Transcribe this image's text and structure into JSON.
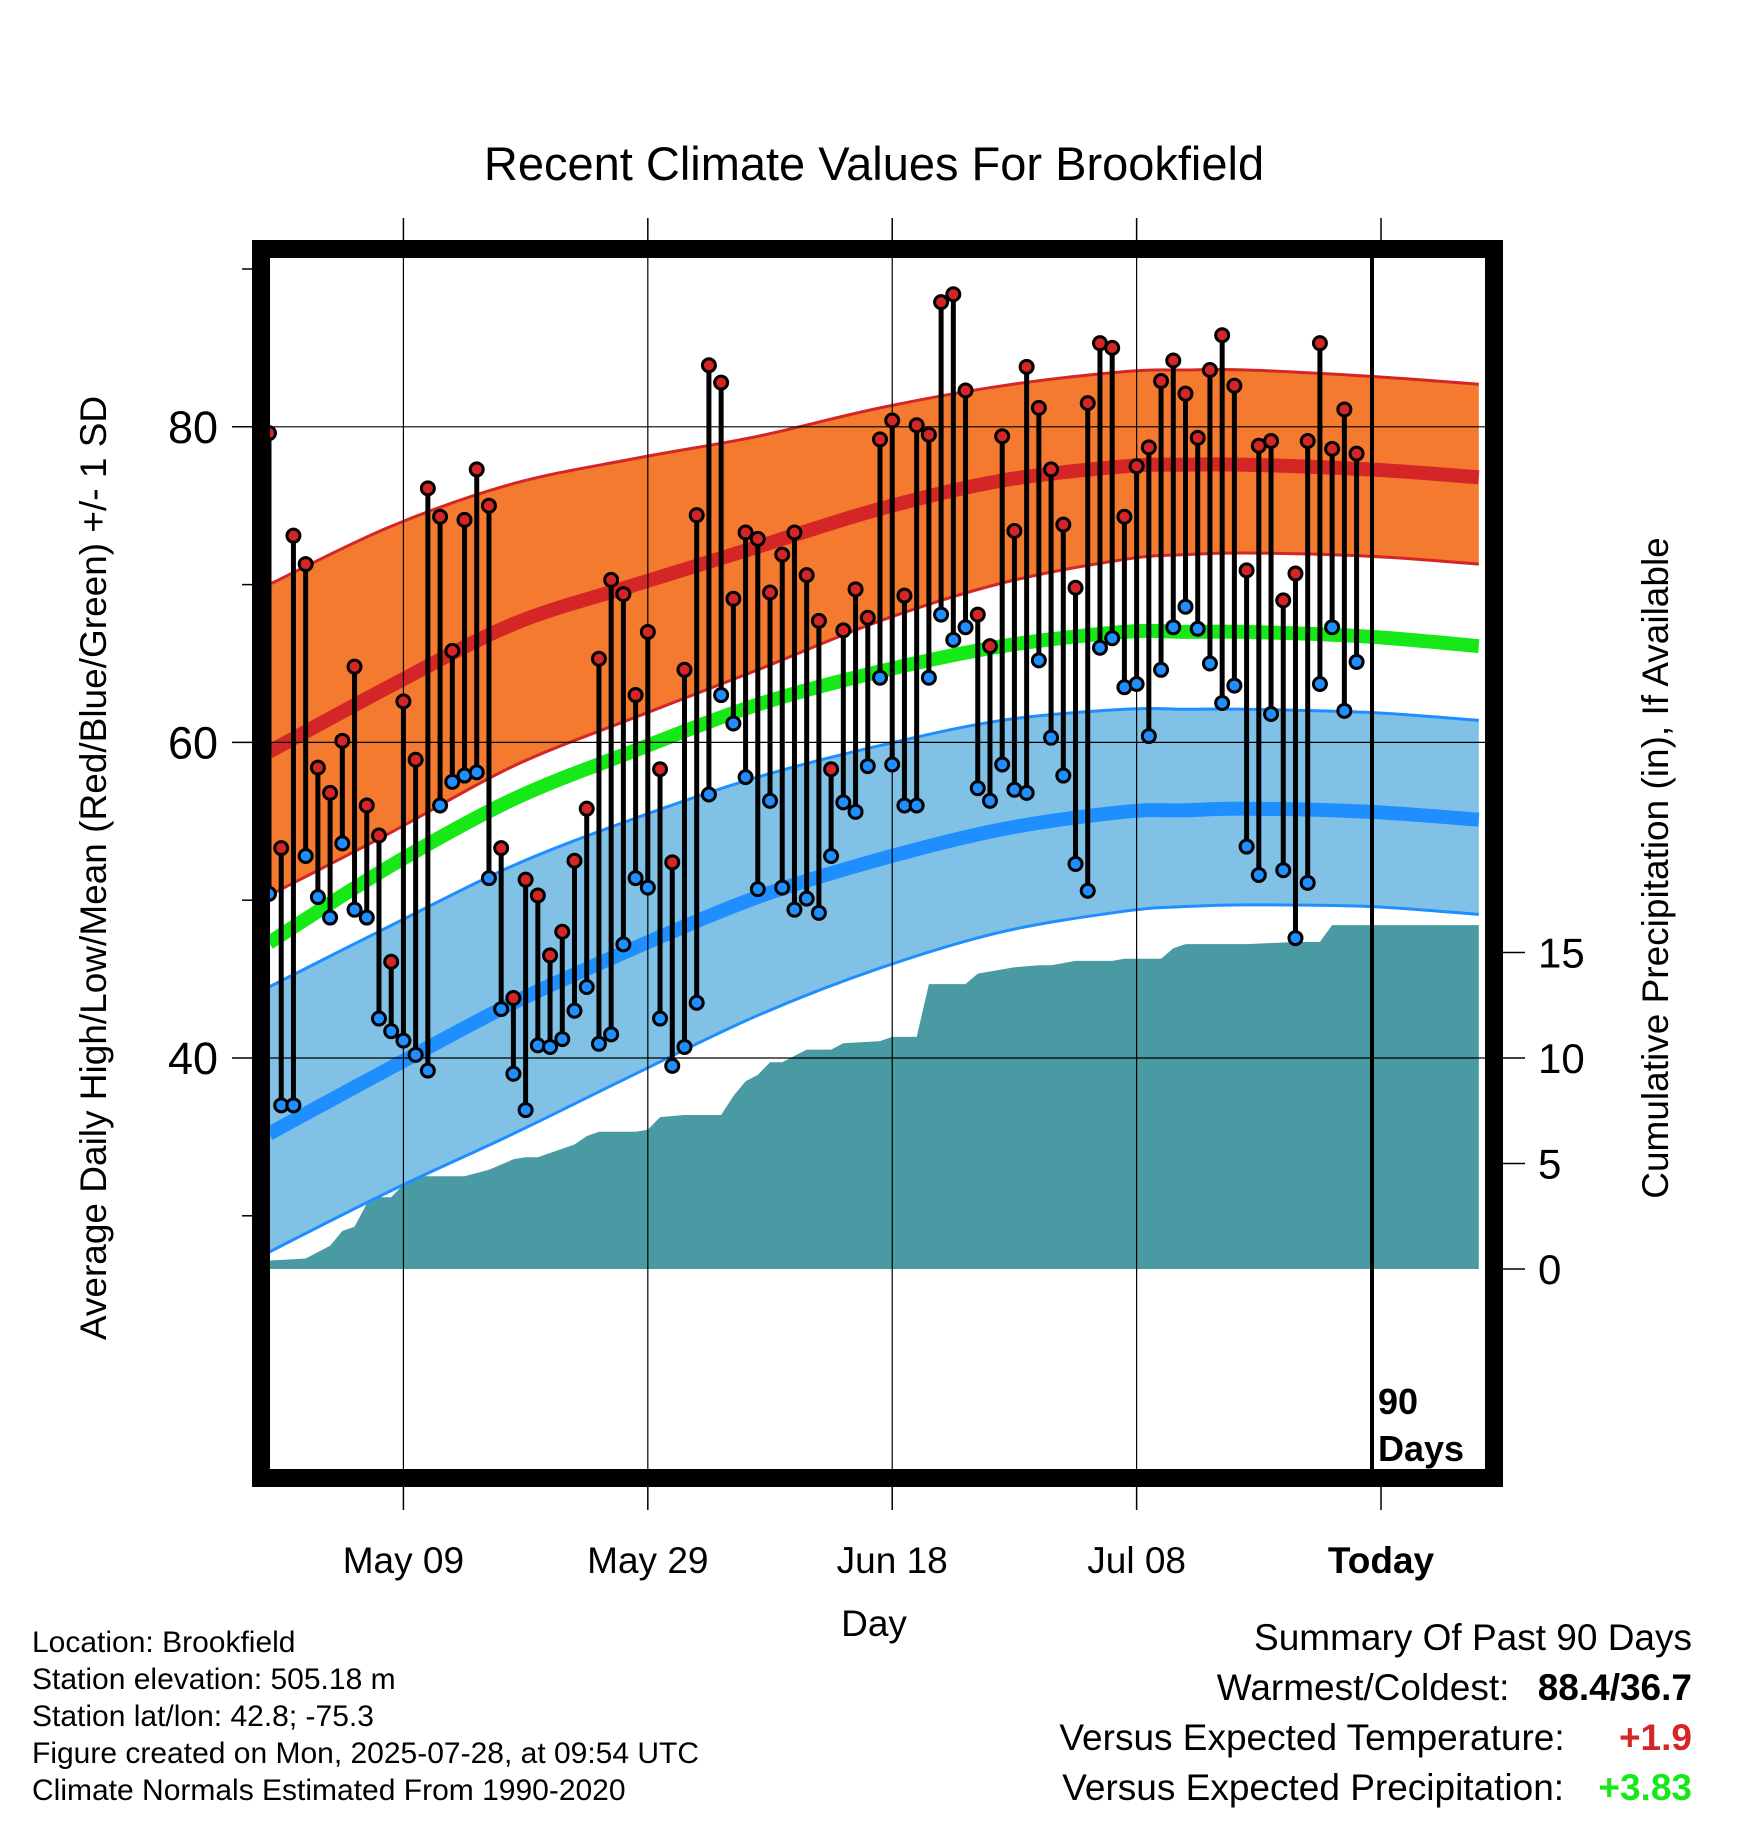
{
  "title": "Recent Climate Values For Brookfield",
  "y_label": "Average Daily High/Low/Mean (Red/Blue/Green) +/- 1 SD",
  "y2_label": "Cumulative Precipitation (in), If Available",
  "x_label": "Day",
  "x_ticks": [
    "May 09",
    "May 29",
    "Jun 18",
    "Jul 08",
    "Today"
  ],
  "y_ticks": [
    "40",
    "60",
    "80"
  ],
  "y2_ticks": [
    "0",
    "5",
    "10",
    "15"
  ],
  "today_marker": "90 Days",
  "info": {
    "location": "Location: Brookfield",
    "elevation": "Station elevation: 505.18 m",
    "latlon": "Station lat/lon: 42.8; -75.3",
    "created": "Figure created on Mon, 2025-07-28, at 09:54 UTC",
    "normals": "Climate Normals Estimated From 1990-2020"
  },
  "summary": {
    "heading": "Summary Of Past 90 Days",
    "warm_cold_label": "Warmest/Coldest:",
    "warm_cold_value": "88.4/36.7",
    "temp_label": "Versus Expected Temperature:",
    "temp_value": "+1.9",
    "precip_label": "Versus Expected Precipitation:",
    "precip_value": "+3.83"
  },
  "colors": {
    "high_band": "#f47a30",
    "high_line": "#d42626",
    "mean_line": "#17e817",
    "low_band": "#82c1e6",
    "low_line": "#1f8fff",
    "precip": "#4a9aa4",
    "high_point": "#d42626",
    "low_point": "#1f8fff",
    "temp_positive": "#d42626",
    "precip_positive": "#17e817"
  },
  "chart_data": {
    "type": "line",
    "x_axis": "day offset from Apr 28 (Today = day 90)",
    "xlim": [
      0,
      99
    ],
    "ylim": [
      25.5,
      95
    ],
    "y2lim": [
      0,
      27.5
    ],
    "normals": {
      "x": [
        0,
        10,
        20,
        30,
        40,
        50,
        60,
        70,
        75,
        80,
        90,
        99
      ],
      "high_mean": [
        59.4,
        63.6,
        67.5,
        70.0,
        72.4,
        74.8,
        76.6,
        77.5,
        77.6,
        77.6,
        77.3,
        76.8
      ],
      "high_upper": [
        70.0,
        73.7,
        76.4,
        78.0,
        79.4,
        81.2,
        82.6,
        83.5,
        83.6,
        83.6,
        83.2,
        82.7
      ],
      "high_lower": [
        50.3,
        54.3,
        58.5,
        61.6,
        64.6,
        67.7,
        70.1,
        71.6,
        71.9,
        72.0,
        71.8,
        71.3
      ],
      "mean": [
        47.3,
        52.2,
        56.4,
        59.5,
        62.4,
        64.5,
        66.1,
        67.0,
        67.0,
        67.0,
        66.7,
        66.1
      ],
      "low_mean": [
        35.2,
        39.4,
        43.5,
        47.0,
        50.2,
        52.6,
        54.5,
        55.6,
        55.7,
        55.8,
        55.6,
        55.1
      ],
      "low_upper": [
        44.5,
        48.4,
        52.2,
        55.2,
        57.8,
        59.8,
        61.4,
        62.1,
        62.1,
        62.1,
        61.9,
        61.4
      ],
      "low_lower": [
        27.7,
        31.6,
        35.2,
        39.0,
        42.7,
        45.7,
        48.0,
        49.3,
        49.6,
        49.7,
        49.6,
        49.1
      ]
    },
    "daily": {
      "x": [
        0,
        1,
        2,
        3,
        4,
        5,
        6,
        7,
        8,
        9,
        10,
        11,
        12,
        13,
        14,
        15,
        16,
        17,
        18,
        19,
        20,
        21,
        22,
        23,
        24,
        25,
        26,
        27,
        28,
        29,
        30,
        31,
        32,
        33,
        34,
        35,
        36,
        37,
        38,
        39,
        40,
        41,
        42,
        43,
        44,
        45,
        46,
        47,
        48,
        49,
        50,
        51,
        52,
        53,
        54,
        55,
        56,
        57,
        58,
        59,
        60,
        61,
        62,
        63,
        64,
        65,
        66,
        67,
        68,
        69,
        70,
        71,
        72,
        73,
        74,
        75,
        76,
        77,
        78,
        79,
        80,
        81,
        82,
        83,
        84,
        85,
        86,
        87,
        88,
        89
      ],
      "high": [
        79.6,
        53.3,
        73.1,
        71.3,
        58.4,
        56.8,
        60.1,
        64.8,
        56.0,
        54.1,
        46.1,
        62.6,
        58.9,
        76.1,
        74.3,
        65.8,
        74.1,
        77.3,
        75.0,
        53.3,
        43.8,
        51.3,
        50.3,
        46.5,
        48.0,
        52.5,
        55.8,
        65.3,
        70.3,
        69.4,
        63.0,
        67.0,
        58.3,
        52.4,
        64.6,
        74.4,
        83.9,
        82.8,
        69.1,
        73.3,
        72.9,
        69.5,
        71.9,
        73.3,
        70.6,
        67.7,
        58.3,
        67.1,
        69.7,
        67.9,
        79.2,
        80.4,
        69.3,
        80.1,
        79.5,
        87.9,
        88.4,
        82.3,
        68.1,
        66.1,
        79.4,
        73.4,
        83.8,
        81.2,
        77.3,
        73.8,
        69.8,
        81.5,
        85.3,
        85.0,
        74.3,
        77.5,
        78.7,
        82.9,
        84.2,
        82.1,
        79.3,
        83.6,
        85.8,
        82.6,
        70.9,
        78.8,
        79.1,
        69.0,
        70.7,
        79.1,
        85.3,
        78.6,
        81.1,
        78.3
      ],
      "low": [
        50.4,
        37.0,
        37.0,
        52.8,
        50.2,
        48.9,
        53.6,
        49.4,
        48.9,
        42.5,
        41.7,
        41.1,
        40.2,
        39.2,
        56.0,
        57.5,
        57.9,
        58.1,
        51.4,
        43.1,
        39.0,
        36.7,
        40.8,
        40.7,
        41.2,
        43.0,
        44.5,
        40.9,
        41.5,
        47.2,
        51.4,
        50.8,
        42.5,
        39.5,
        40.7,
        43.5,
        56.7,
        63.0,
        61.2,
        57.8,
        50.7,
        56.3,
        50.8,
        49.4,
        50.1,
        49.2,
        52.8,
        56.2,
        55.6,
        58.5,
        64.1,
        58.6,
        56.0,
        56.0,
        64.1,
        68.1,
        66.5,
        67.3,
        57.1,
        56.3,
        58.6,
        57.0,
        56.8,
        65.2,
        60.3,
        57.9,
        52.3,
        50.6,
        66.0,
        66.6,
        63.5,
        63.7,
        60.4,
        64.6,
        67.3,
        68.6,
        67.2,
        65.0,
        62.5,
        63.6,
        53.4,
        51.6,
        61.8,
        51.9,
        47.6,
        51.1,
        63.7,
        67.3,
        62.0,
        65.1
      ]
    },
    "precip_cumulative": {
      "x": [
        0,
        3,
        5,
        6,
        7,
        8,
        9,
        10,
        11,
        12,
        16,
        18,
        20,
        21,
        22,
        24,
        25,
        26,
        27,
        30,
        31,
        32,
        34,
        37,
        38,
        39,
        40,
        41,
        42,
        44,
        46,
        47,
        50,
        51,
        53,
        54,
        57,
        58,
        60,
        61,
        63,
        64,
        66,
        69,
        70,
        73,
        74,
        75,
        78,
        80,
        84,
        86,
        87,
        90,
        99
      ],
      "y": [
        0.4,
        0.5,
        1.1,
        1.8,
        2.0,
        3.1,
        3.4,
        3.4,
        4.0,
        4.4,
        4.4,
        4.7,
        5.2,
        5.3,
        5.3,
        5.7,
        5.9,
        6.3,
        6.5,
        6.5,
        6.6,
        7.2,
        7.3,
        7.3,
        8.2,
        8.9,
        9.2,
        9.8,
        9.8,
        10.4,
        10.4,
        10.7,
        10.8,
        11.0,
        11.0,
        13.5,
        13.5,
        14.0,
        14.2,
        14.3,
        14.4,
        14.4,
        14.6,
        14.6,
        14.7,
        14.7,
        15.2,
        15.4,
        15.4,
        15.4,
        15.5,
        15.5,
        16.3,
        16.3,
        16.3
      ]
    },
    "grid": true
  }
}
